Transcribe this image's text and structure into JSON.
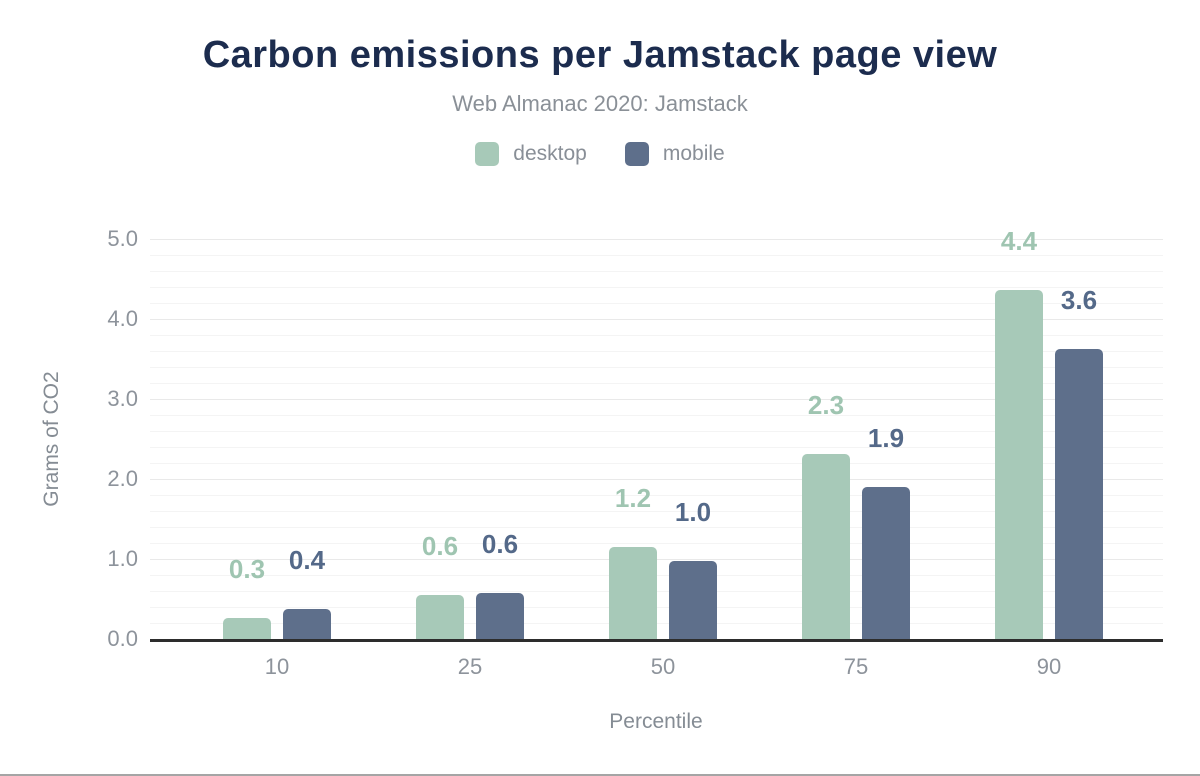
{
  "colors": {
    "title": "#1c2c4e",
    "subtitle": "#8a9097",
    "axis_text": "#8d939b",
    "axis_title": "#858c94",
    "axis_line": "#2d2d2d",
    "bottom_rule": "#a5a5a5"
  },
  "chart_data": {
    "type": "bar",
    "title": "Carbon emissions per Jamstack page view",
    "subtitle": "Web Almanac 2020: Jamstack",
    "xlabel": "Percentile",
    "ylabel": "Grams of CO2",
    "categories": [
      "10",
      "25",
      "50",
      "75",
      "90"
    ],
    "series": [
      {
        "name": "desktop",
        "color": "#a7c9b8",
        "label_color": "#9fc5b1",
        "values": [
          0.26,
          0.55,
          1.15,
          2.31,
          4.36
        ],
        "labels": [
          "0.3",
          "0.6",
          "1.2",
          "2.3",
          "4.4"
        ]
      },
      {
        "name": "mobile",
        "color": "#5e6f8b",
        "label_color": "#546989",
        "values": [
          0.38,
          0.58,
          0.97,
          1.9,
          3.63
        ],
        "labels": [
          "0.4",
          "0.6",
          "1.0",
          "1.9",
          "3.6"
        ]
      }
    ],
    "ylim": [
      0,
      5
    ],
    "y_ticks": [
      "0.0",
      "1.0",
      "2.0",
      "3.0",
      "4.0",
      "5.0"
    ],
    "grid": {
      "minor_step": 0.2,
      "major_step": 1.0,
      "gridlines": "horizontal"
    },
    "legend_position": "top-center",
    "value_labels": "above-bars"
  }
}
